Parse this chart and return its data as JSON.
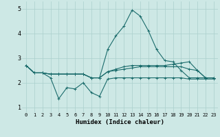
{
  "title": "",
  "xlabel": "Humidex (Indice chaleur)",
  "ylabel": "",
  "xlim": [
    -0.5,
    23.5
  ],
  "ylim": [
    0.8,
    5.3
  ],
  "yticks": [
    1,
    2,
    3,
    4,
    5
  ],
  "xticks": [
    0,
    1,
    2,
    3,
    4,
    5,
    6,
    7,
    8,
    9,
    10,
    11,
    12,
    13,
    14,
    15,
    16,
    17,
    18,
    19,
    20,
    21,
    22,
    23
  ],
  "background_color": "#cde8e5",
  "grid_color": "#aacfcc",
  "line_color": "#1a6b6b",
  "series": [
    [
      2.7,
      2.4,
      2.4,
      2.2,
      1.35,
      1.8,
      1.75,
      2.0,
      1.6,
      1.45,
      2.15,
      2.2,
      2.2,
      2.2,
      2.2,
      2.2,
      2.2,
      2.2,
      2.2,
      2.2,
      2.15,
      2.15,
      2.15,
      2.15
    ],
    [
      2.7,
      2.4,
      2.4,
      2.35,
      2.35,
      2.35,
      2.35,
      2.35,
      2.2,
      2.2,
      2.45,
      2.5,
      2.55,
      2.6,
      2.65,
      2.65,
      2.65,
      2.65,
      2.65,
      2.65,
      2.55,
      2.5,
      2.2,
      2.2
    ],
    [
      2.7,
      2.4,
      2.4,
      2.35,
      2.35,
      2.35,
      2.35,
      2.35,
      2.2,
      2.2,
      2.45,
      2.55,
      2.65,
      2.7,
      2.7,
      2.7,
      2.7,
      2.7,
      2.75,
      2.8,
      2.85,
      2.5,
      2.2,
      2.2
    ],
    [
      2.7,
      2.4,
      2.4,
      2.35,
      2.35,
      2.35,
      2.35,
      2.35,
      2.2,
      2.2,
      3.35,
      3.9,
      4.3,
      4.95,
      4.7,
      4.1,
      3.35,
      2.9,
      2.85,
      2.5,
      2.2,
      2.2,
      2.2,
      2.2
    ]
  ],
  "marker": "+",
  "markersize": 3,
  "linewidth": 0.8,
  "tick_fontsize": 5,
  "xlabel_fontsize": 6.5
}
